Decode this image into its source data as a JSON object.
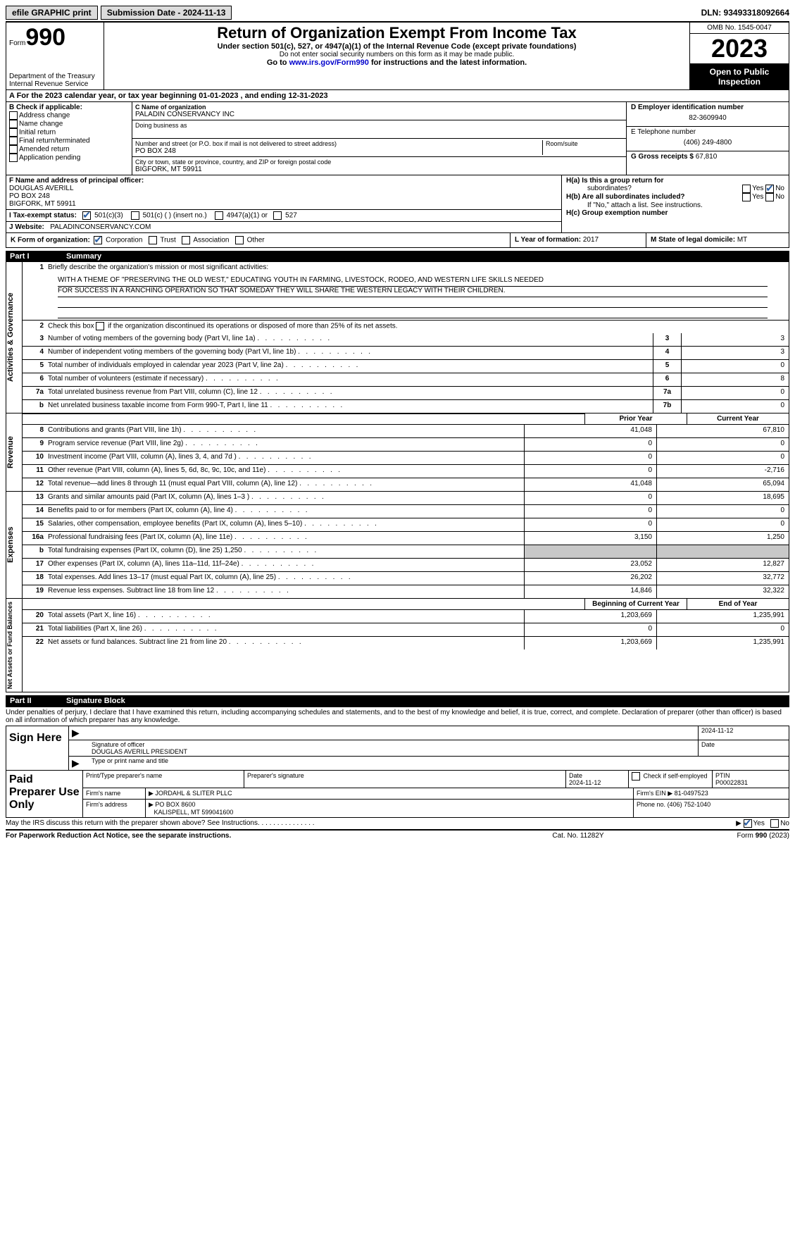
{
  "topbar": {
    "efile": "efile GRAPHIC print",
    "submission_label": "Submission Date - 2024-11-13",
    "dln": "DLN: 93493318092664"
  },
  "header": {
    "form_prefix": "Form",
    "form_num": "990",
    "dept": "Department of the Treasury",
    "irs": "Internal Revenue Service",
    "title": "Return of Organization Exempt From Income Tax",
    "sub": "Under section 501(c), 527, or 4947(a)(1) of the Internal Revenue Code (except private foundations)",
    "sub2": "Do not enter social security numbers on this form as it may be made public.",
    "goto_prefix": "Go to ",
    "goto_link": "www.irs.gov/Form990",
    "goto_suffix": " for instructions and the latest information.",
    "omb": "OMB No. 1545-0047",
    "year": "2023",
    "inspect": "Open to Public Inspection"
  },
  "row_a": "A For the 2023 calendar year, or tax year beginning 01-01-2023    , and ending 12-31-2023",
  "col_b": {
    "label": "B Check if applicable:",
    "addr_change": "Address change",
    "name_change": "Name change",
    "initial": "Initial return",
    "final": "Final return/terminated",
    "amended": "Amended return",
    "app_pending": "Application pending"
  },
  "col_c": {
    "name_label": "C Name of organization",
    "name": "PALADIN CONSERVANCY INC",
    "dba_label": "Doing business as",
    "addr_label": "Number and street (or P.O. box if mail is not delivered to street address)",
    "addr": "PO BOX 248",
    "room_label": "Room/suite",
    "city_label": "City or town, state or province, country, and ZIP or foreign postal code",
    "city": "BIGFORK, MT  59911"
  },
  "col_de": {
    "d_label": "D Employer identification number",
    "d_val": "82-3609940",
    "e_label": "E Telephone number",
    "e_val": "(406) 249-4800",
    "g_label": "G Gross receipts $",
    "g_val": "67,810"
  },
  "f": {
    "label": "F Name and address of principal officer:",
    "name": "DOUGLAS AVERILL",
    "addr1": "PO BOX 248",
    "addr2": "BIGFORK, MT  59911"
  },
  "i": {
    "label": "I     Tax-exempt status:",
    "c3": "501(c)(3)",
    "c_other": "501(c) (  ) (insert no.)",
    "a1": "4947(a)(1) or",
    "s527": "527"
  },
  "j": {
    "label": "J     Website:",
    "val": "PALADINCONSERVANCY.COM"
  },
  "h": {
    "a_label": "H(a)  Is this a group return for",
    "a_sub": "subordinates?",
    "b_label": "H(b)  Are all subordinates included?",
    "b_note": "If \"No,\" attach a list. See instructions.",
    "c_label": "H(c)  Group exemption number",
    "yes": "Yes",
    "no": "No"
  },
  "k": {
    "label": "K Form of organization:",
    "corp": "Corporation",
    "trust": "Trust",
    "assoc": "Association",
    "other": "Other"
  },
  "l": {
    "label": "L Year of formation:",
    "val": "2017"
  },
  "m": {
    "label": "M State of legal domicile:",
    "val": "MT"
  },
  "part1": {
    "num": "Part I",
    "title": "Summary"
  },
  "sidelabels": {
    "ag": "Activities & Governance",
    "rev": "Revenue",
    "exp": "Expenses",
    "na": "Net Assets or Fund Balances"
  },
  "s1": {
    "prompt": "Briefly describe the organization's mission or most significant activities:",
    "mission1": "WITH A THEME OF \"PRESERVING THE OLD WEST,\" EDUCATING YOUTH IN FARMING, LIVESTOCK, RODEO, AND WESTERN LIFE SKILLS NEEDED",
    "mission2": "FOR SUCCESS IN A RANCHING OPERATION SO THAT SOMEDAY THEY WILL SHARE THE WESTERN LEGACY WITH THEIR CHILDREN."
  },
  "s2": "Check this box       if the organization discontinued its operations or disposed of more than 25% of its net assets.",
  "lines_ag": [
    {
      "n": "3",
      "d": "Number of voting members of the governing body (Part VI, line 1a)",
      "lab": "3",
      "v": "3"
    },
    {
      "n": "4",
      "d": "Number of independent voting members of the governing body (Part VI, line 1b)",
      "lab": "4",
      "v": "3"
    },
    {
      "n": "5",
      "d": "Total number of individuals employed in calendar year 2023 (Part V, line 2a)",
      "lab": "5",
      "v": "0"
    },
    {
      "n": "6",
      "d": "Total number of volunteers (estimate if necessary)",
      "lab": "6",
      "v": "8"
    },
    {
      "n": "7a",
      "d": "Total unrelated business revenue from Part VIII, column (C), line 12",
      "lab": "7a",
      "v": "0"
    },
    {
      "n": "b",
      "d": "Net unrelated business taxable income from Form 990-T, Part I, line 11",
      "lab": "7b",
      "v": "0"
    }
  ],
  "col_headers": {
    "py": "Prior Year",
    "cy": "Current Year"
  },
  "lines_rev": [
    {
      "n": "8",
      "d": "Contributions and grants (Part VIII, line 1h)",
      "py": "41,048",
      "cy": "67,810"
    },
    {
      "n": "9",
      "d": "Program service revenue (Part VIII, line 2g)",
      "py": "0",
      "cy": "0"
    },
    {
      "n": "10",
      "d": "Investment income (Part VIII, column (A), lines 3, 4, and 7d )",
      "py": "0",
      "cy": "0"
    },
    {
      "n": "11",
      "d": "Other revenue (Part VIII, column (A), lines 5, 6d, 8c, 9c, 10c, and 11e)",
      "py": "0",
      "cy": "-2,716"
    },
    {
      "n": "12",
      "d": "Total revenue—add lines 8 through 11 (must equal Part VIII, column (A), line 12)",
      "py": "41,048",
      "cy": "65,094"
    }
  ],
  "lines_exp": [
    {
      "n": "13",
      "d": "Grants and similar amounts paid (Part IX, column (A), lines 1–3 )",
      "py": "0",
      "cy": "18,695"
    },
    {
      "n": "14",
      "d": "Benefits paid to or for members (Part IX, column (A), line 4)",
      "py": "0",
      "cy": "0"
    },
    {
      "n": "15",
      "d": "Salaries, other compensation, employee benefits (Part IX, column (A), lines 5–10)",
      "py": "0",
      "cy": "0"
    },
    {
      "n": "16a",
      "d": "Professional fundraising fees (Part IX, column (A), line 11e)",
      "py": "3,150",
      "cy": "1,250"
    },
    {
      "n": "b",
      "d": "Total fundraising expenses (Part IX, column (D), line 25) 1,250",
      "py": "",
      "cy": "",
      "shaded": true
    },
    {
      "n": "17",
      "d": "Other expenses (Part IX, column (A), lines 11a–11d, 11f–24e)",
      "py": "23,052",
      "cy": "12,827"
    },
    {
      "n": "18",
      "d": "Total expenses. Add lines 13–17 (must equal Part IX, column (A), line 25)",
      "py": "26,202",
      "cy": "32,772"
    },
    {
      "n": "19",
      "d": "Revenue less expenses. Subtract line 18 from line 12",
      "py": "14,846",
      "cy": "32,322"
    }
  ],
  "na_headers": {
    "by": "Beginning of Current Year",
    "ey": "End of Year"
  },
  "lines_na": [
    {
      "n": "20",
      "d": "Total assets (Part X, line 16)",
      "py": "1,203,669",
      "cy": "1,235,991"
    },
    {
      "n": "21",
      "d": "Total liabilities (Part X, line 26)",
      "py": "0",
      "cy": "0"
    },
    {
      "n": "22",
      "d": "Net assets or fund balances. Subtract line 21 from line 20",
      "py": "1,203,669",
      "cy": "1,235,991"
    }
  ],
  "part2": {
    "num": "Part II",
    "title": "Signature Block"
  },
  "sig_intro": "Under penalties of perjury, I declare that I have examined this return, including accompanying schedules and statements, and to the best of my knowledge and belief, it is true, correct, and complete. Declaration of preparer (other than officer) is based on all information of which preparer has any knowledge.",
  "sign": {
    "label": "Sign Here",
    "sig_officer": "Signature of officer",
    "officer_name": "DOUGLAS AVERILL PRESIDENT",
    "type_label": "Type or print name and title",
    "date_label": "Date",
    "date_val": "2024-11-12"
  },
  "paid": {
    "label": "Paid Preparer Use Only",
    "print_label": "Print/Type preparer's name",
    "sig_label": "Preparer's signature",
    "date_label": "Date",
    "date_val": "2024-11-12",
    "check_label": "Check        if self-employed",
    "ptin_label": "PTIN",
    "ptin_val": "P00022831",
    "firm_name_label": "Firm's name",
    "firm_name": "JORDAHL & SLITER PLLC",
    "firm_ein_label": "Firm's EIN",
    "firm_ein": "81-0497523",
    "firm_addr_label": "Firm's address",
    "firm_addr1": "PO BOX 8600",
    "firm_addr2": "KALISPELL, MT  599041600",
    "phone_label": "Phone no.",
    "phone": "(406) 752-1040"
  },
  "may_irs": "May the IRS discuss this return with the preparer shown above? See Instructions.",
  "footer": {
    "l": "For Paperwork Reduction Act Notice, see the separate instructions.",
    "c": "Cat. No. 11282Y",
    "r_prefix": "Form ",
    "r_form": "990",
    "r_suffix": " (2023)"
  }
}
